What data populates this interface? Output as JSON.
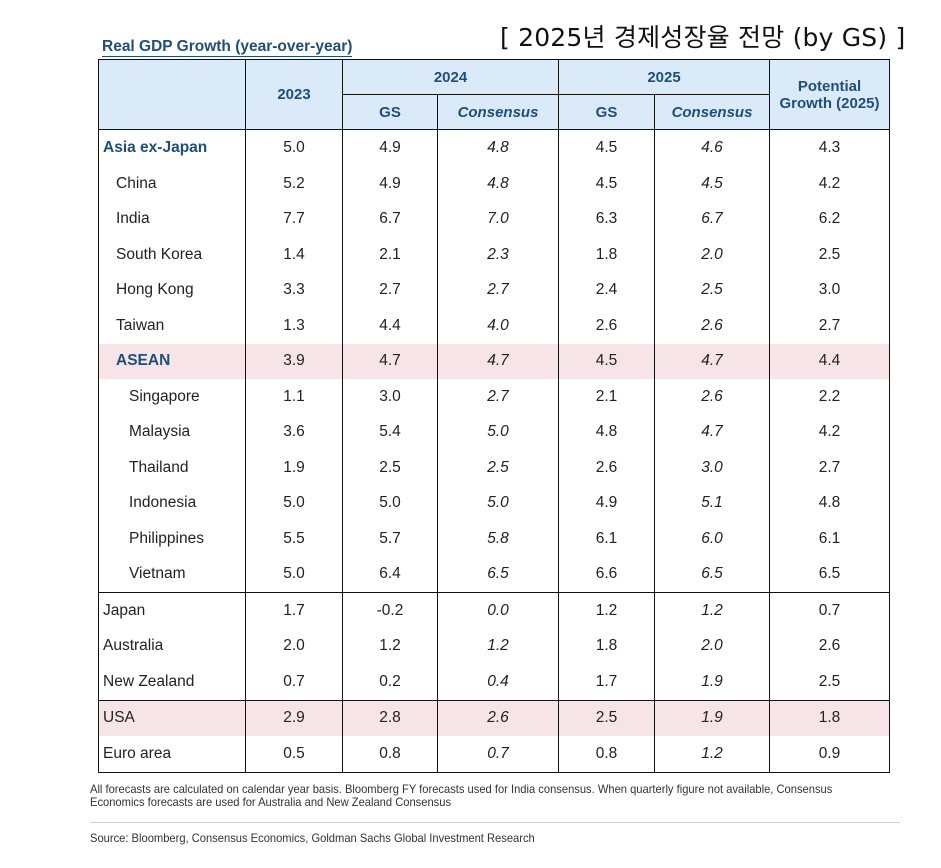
{
  "korean_title": "[ 2025년 경제성장율 전망 (by GS) ]",
  "table_title": "Real GDP Growth (year-over-year)",
  "headers": {
    "y2023": "2023",
    "y2024": "2024",
    "y2025": "2025",
    "potential": "Potential Growth (2025)",
    "gs": "GS",
    "consensus": "Consensus"
  },
  "rows": [
    {
      "name": "Asia ex-Japan",
      "v2023": "5.0",
      "gs2024": "4.9",
      "con2024": "4.8",
      "gs2025": "4.5",
      "con2025": "4.6",
      "potential": "4.3"
    },
    {
      "name": "China",
      "v2023": "5.2",
      "gs2024": "4.9",
      "con2024": "4.8",
      "gs2025": "4.5",
      "con2025": "4.5",
      "potential": "4.2"
    },
    {
      "name": "India",
      "v2023": "7.7",
      "gs2024": "6.7",
      "con2024": "7.0",
      "gs2025": "6.3",
      "con2025": "6.7",
      "potential": "6.2"
    },
    {
      "name": "South Korea",
      "v2023": "1.4",
      "gs2024": "2.1",
      "con2024": "2.3",
      "gs2025": "1.8",
      "con2025": "2.0",
      "potential": "2.5"
    },
    {
      "name": "Hong Kong",
      "v2023": "3.3",
      "gs2024": "2.7",
      "con2024": "2.7",
      "gs2025": "2.4",
      "con2025": "2.5",
      "potential": "3.0"
    },
    {
      "name": "Taiwan",
      "v2023": "1.3",
      "gs2024": "4.4",
      "con2024": "4.0",
      "gs2025": "2.6",
      "con2025": "2.6",
      "potential": "2.7"
    },
    {
      "name": "ASEAN",
      "v2023": "3.9",
      "gs2024": "4.7",
      "con2024": "4.7",
      "gs2025": "4.5",
      "con2025": "4.7",
      "potential": "4.4"
    },
    {
      "name": "Singapore",
      "v2023": "1.1",
      "gs2024": "3.0",
      "con2024": "2.7",
      "gs2025": "2.1",
      "con2025": "2.6",
      "potential": "2.2"
    },
    {
      "name": "Malaysia",
      "v2023": "3.6",
      "gs2024": "5.4",
      "con2024": "5.0",
      "gs2025": "4.8",
      "con2025": "4.7",
      "potential": "4.2"
    },
    {
      "name": "Thailand",
      "v2023": "1.9",
      "gs2024": "2.5",
      "con2024": "2.5",
      "gs2025": "2.6",
      "con2025": "3.0",
      "potential": "2.7"
    },
    {
      "name": "Indonesia",
      "v2023": "5.0",
      "gs2024": "5.0",
      "con2024": "5.0",
      "gs2025": "4.9",
      "con2025": "5.1",
      "potential": "4.8"
    },
    {
      "name": "Philippines",
      "v2023": "5.5",
      "gs2024": "5.7",
      "con2024": "5.8",
      "gs2025": "6.1",
      "con2025": "6.0",
      "potential": "6.1"
    },
    {
      "name": "Vietnam",
      "v2023": "5.0",
      "gs2024": "6.4",
      "con2024": "6.5",
      "gs2025": "6.6",
      "con2025": "6.5",
      "potential": "6.5"
    },
    {
      "name": "Japan",
      "v2023": "1.7",
      "gs2024": "-0.2",
      "con2024": "0.0",
      "gs2025": "1.2",
      "con2025": "1.2",
      "potential": "0.7"
    },
    {
      "name": "Australia",
      "v2023": "2.0",
      "gs2024": "1.2",
      "con2024": "1.2",
      "gs2025": "1.8",
      "con2025": "2.0",
      "potential": "2.6"
    },
    {
      "name": "New Zealand",
      "v2023": "0.7",
      "gs2024": "0.2",
      "con2024": "0.4",
      "gs2025": "1.7",
      "con2025": "1.9",
      "potential": "2.5"
    },
    {
      "name": "USA",
      "v2023": "2.9",
      "gs2024": "2.8",
      "con2024": "2.6",
      "gs2025": "2.5",
      "con2025": "1.9",
      "potential": "1.8"
    },
    {
      "name": "Euro area",
      "v2023": "0.5",
      "gs2024": "0.8",
      "con2024": "0.7",
      "gs2025": "0.8",
      "con2025": "1.2",
      "potential": "0.9"
    }
  ],
  "highlight_color": "#f6e4e6",
  "header_bg": "#dbeaf8",
  "accent_color": "#1f4e79",
  "footnote": "All forecasts are calculated on calendar year basis. Bloomberg FY forecasts used for India consensus. When quarterly figure not available, Consensus Economics forecasts are used for Australia and New Zealand Consensus",
  "source": "Source: Bloomberg, Consensus Economics, Goldman Sachs Global Investment Research"
}
